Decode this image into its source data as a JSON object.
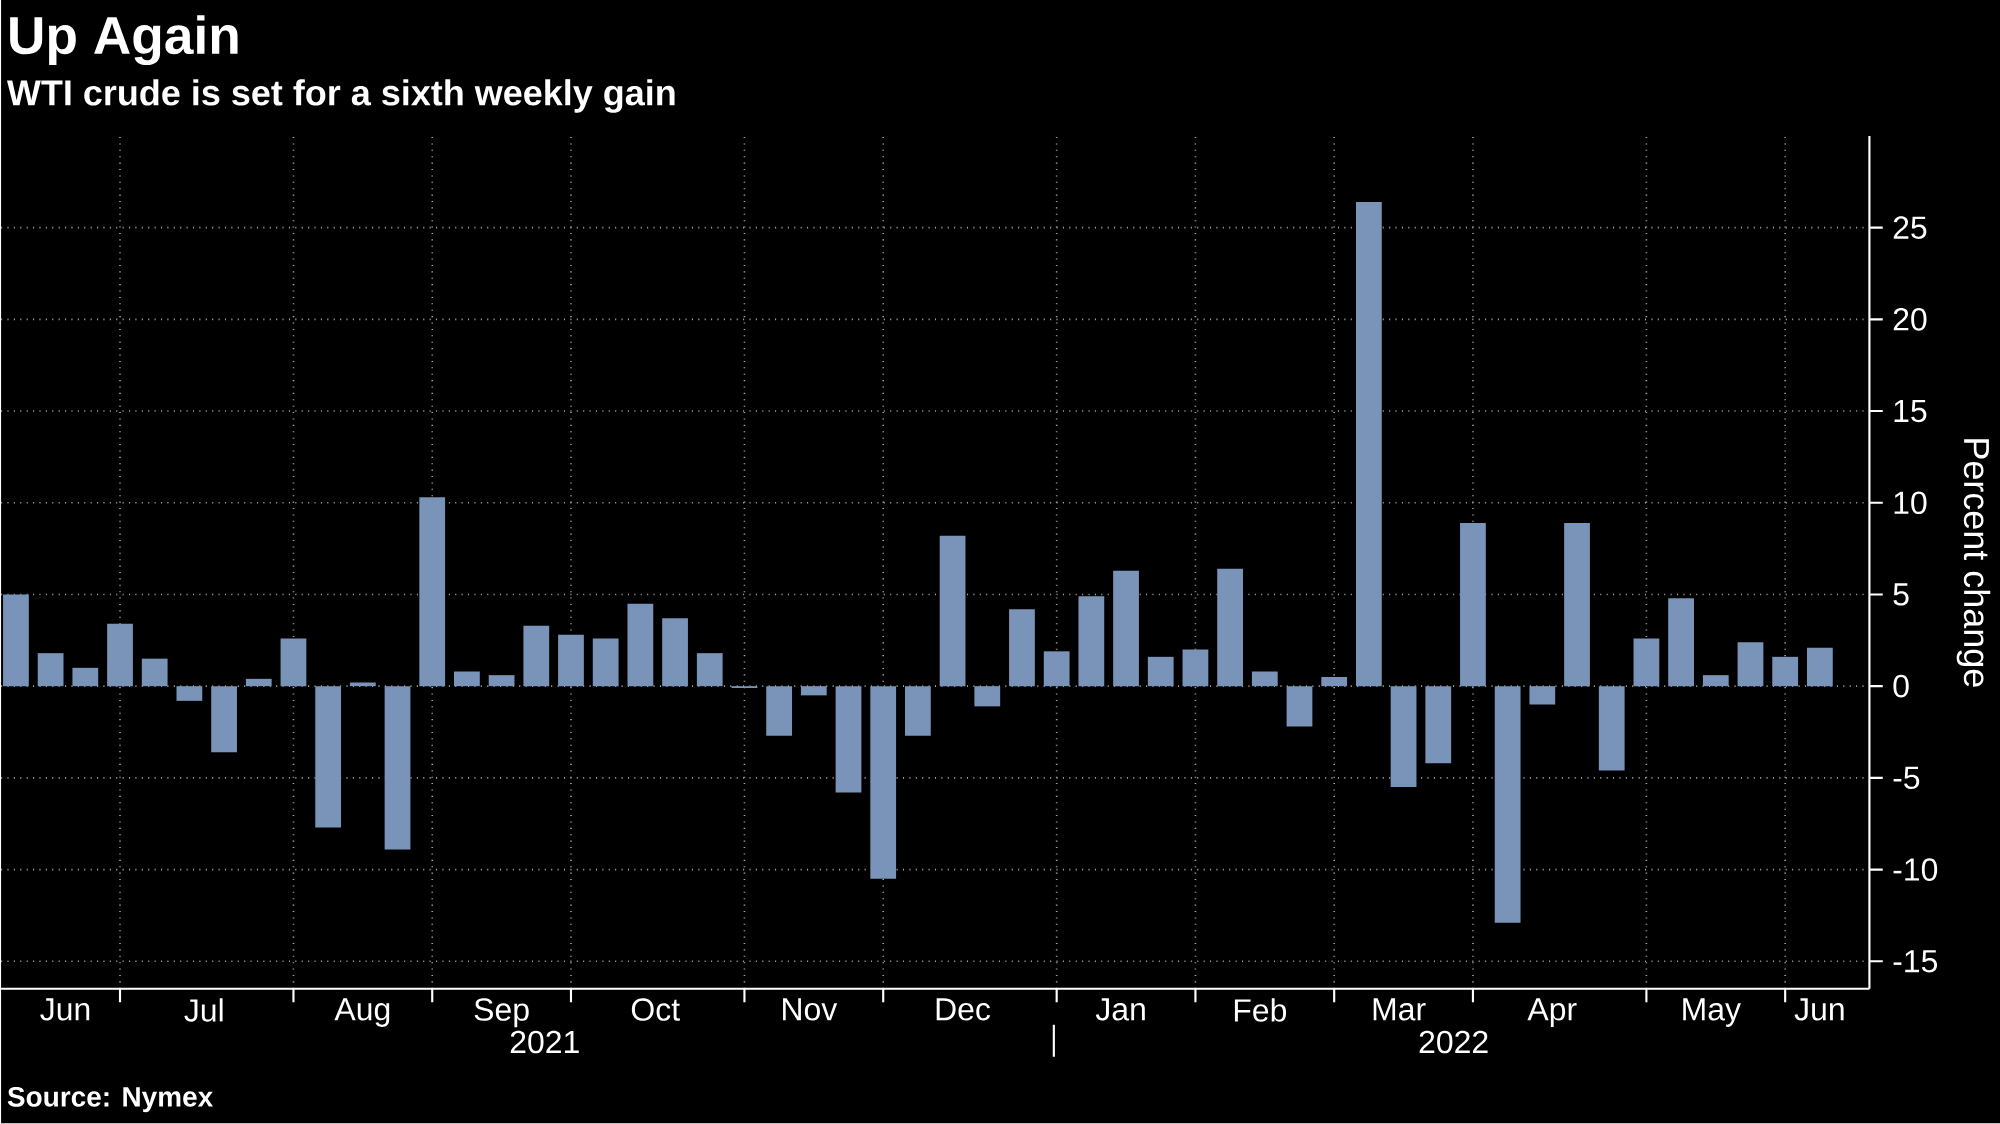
{
  "chart_data": {
    "type": "bar",
    "title": "Up Again",
    "subtitle": "WTI crude is set for a sixth weekly gain",
    "ylabel": "Percent change",
    "x": [
      "2021-06-11",
      "2021-06-18",
      "2021-06-25",
      "2021-07-02",
      "2021-07-09",
      "2021-07-16",
      "2021-07-23",
      "2021-07-30",
      "2021-08-06",
      "2021-08-13",
      "2021-08-20",
      "2021-08-27",
      "2021-09-03",
      "2021-09-10",
      "2021-09-17",
      "2021-09-24",
      "2021-10-01",
      "2021-10-08",
      "2021-10-15",
      "2021-10-22",
      "2021-10-29",
      "2021-11-05",
      "2021-11-12",
      "2021-11-19",
      "2021-11-26",
      "2021-12-03",
      "2021-12-10",
      "2021-12-17",
      "2021-12-24",
      "2021-12-31",
      "2022-01-07",
      "2022-01-14",
      "2022-01-21",
      "2022-01-28",
      "2022-02-04",
      "2022-02-11",
      "2022-02-18",
      "2022-02-25",
      "2022-03-04",
      "2022-03-11",
      "2022-03-18",
      "2022-03-25",
      "2022-04-01",
      "2022-04-08",
      "2022-04-15",
      "2022-04-22",
      "2022-04-29",
      "2022-05-06",
      "2022-05-13",
      "2022-05-20",
      "2022-05-27",
      "2022-06-03",
      "2022-06-10"
    ],
    "values": [
      5.0,
      1.8,
      1.0,
      3.4,
      1.5,
      -0.8,
      -3.6,
      0.4,
      2.6,
      -7.7,
      0.2,
      -8.9,
      10.3,
      0.8,
      0.6,
      3.3,
      2.8,
      2.6,
      4.5,
      3.7,
      1.8,
      -0.1,
      -2.7,
      -0.5,
      -5.8,
      -10.5,
      -2.7,
      8.2,
      -1.1,
      4.2,
      1.9,
      4.9,
      6.3,
      1.6,
      2.0,
      6.4,
      0.8,
      -2.2,
      0.5,
      26.4,
      -5.5,
      -4.2,
      8.9,
      -12.9,
      -1.0,
      8.9,
      -4.6,
      2.6,
      4.8,
      0.6,
      2.4,
      1.6,
      2.1
    ],
    "color": "#7a93b8",
    "xlim": [
      "2021-06-08",
      "2022-06-20"
    ],
    "xticks": [
      {
        "value": "2021-07-02",
        "label": null
      },
      {
        "value": "2021-08-06",
        "label": null
      },
      {
        "value": "2021-09-03",
        "label": null
      },
      {
        "value": "2021-10-01",
        "label": null
      },
      {
        "value": "2021-11-05",
        "label": null
      },
      {
        "value": "2021-12-03",
        "label": null
      },
      {
        "value": "2022-01-07",
        "label": null
      },
      {
        "value": "2022-02-04",
        "label": null
      },
      {
        "value": "2022-03-04",
        "label": null
      },
      {
        "value": "2022-04-01",
        "label": null
      },
      {
        "value": "2022-05-06",
        "label": null
      },
      {
        "value": "2022-06-03",
        "label": null
      },
      {
        "value": "2021-06-21",
        "label": "Jun"
      },
      {
        "value": "2021-07-19",
        "label": "Jul"
      },
      {
        "value": "2021-08-20",
        "label": "Aug"
      },
      {
        "value": "2021-09-17",
        "label": "Sep"
      },
      {
        "value": "2021-10-18",
        "label": "Oct"
      },
      {
        "value": "2021-11-18",
        "label": "Nov"
      },
      {
        "value": "2021-12-19",
        "label": "Dec"
      },
      {
        "value": "2022-01-20",
        "label": "Jan"
      },
      {
        "value": "2022-02-17",
        "label": "Feb"
      },
      {
        "value": "2022-03-17",
        "label": "Mar"
      },
      {
        "value": "2022-04-17",
        "label": "Apr"
      },
      {
        "value": "2022-05-19",
        "label": "May"
      },
      {
        "value": "2022-06-10",
        "label": "Jun"
      }
    ],
    "ylim": [
      -16.5,
      30
    ],
    "yticks": [
      -15,
      -10,
      -5,
      0,
      5,
      10,
      15,
      20,
      25
    ],
    "grid": true,
    "annotations": [
      "2021",
      "2022",
      "Source: Nymex"
    ]
  }
}
